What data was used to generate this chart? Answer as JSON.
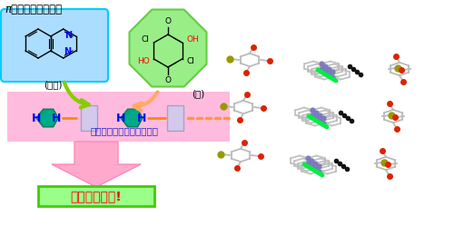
{
  "title": "π電子系の有機分子",
  "label_base": "(塩基)",
  "label_acid": "(酸)",
  "label_hbond": "水素結合による分子化合物",
  "label_ferro": "有機強誘電体!",
  "bg_color": "#ffffff",
  "box_base_color": "#aaddff",
  "box_base_edge": "#00ccff",
  "box_acid_color": "#99ee88",
  "box_acid_edge": "#66cc44",
  "box_pink_color": "#ffbbdd",
  "box_ferro_color": "#99ff88",
  "box_ferro_edge": "#44cc00",
  "arrow_green_color": "#88cc00",
  "arrow_orange_color": "#ffaa66",
  "arrow_pink_color": "#ffaacc",
  "teal_color": "#00aa88",
  "hbond_dash_color": "#ff8800",
  "rect_color": "#ccccee",
  "rect_edge": "#9999cc",
  "H_color": "#0000ff",
  "blue_text": "#2222cc",
  "ferro_text": "#ff0000"
}
